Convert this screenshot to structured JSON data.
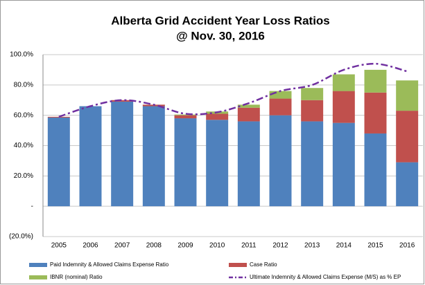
{
  "chart_data": {
    "type": "stacked-bar-line",
    "title": "Alberta Grid Accident Year Loss Ratios",
    "subtitle": "@ Nov. 30, 2016",
    "categories": [
      "2005",
      "2006",
      "2007",
      "2008",
      "2009",
      "2010",
      "2011",
      "2012",
      "2013",
      "2014",
      "2015",
      "2016"
    ],
    "series": [
      {
        "name": "Paid Indemnity & Allowed Claims Expense Ratio",
        "color": "#4f81bd",
        "kind": "bar",
        "values": [
          58.5,
          66,
          69,
          66,
          58,
          57,
          56,
          60,
          56,
          55,
          48,
          29
        ]
      },
      {
        "name": "Case Ratio",
        "color": "#c0504d",
        "kind": "bar",
        "values": [
          0.5,
          0,
          1,
          1,
          2,
          4,
          9,
          11,
          14,
          21,
          27,
          34
        ]
      },
      {
        "name": "IBNR (nominal) Ratio",
        "color": "#9bbb59",
        "kind": "bar",
        "values": [
          0,
          0,
          0,
          0,
          0.5,
          1.5,
          2,
          5,
          8,
          11,
          15,
          20
        ]
      },
      {
        "name": "Ultimate Indemnity & Allowed Claims Expense (M/S) as % EP",
        "color": "#7030a0",
        "kind": "line",
        "values": [
          59,
          66,
          70,
          67,
          61,
          62,
          68,
          76,
          80,
          90,
          94,
          89
        ]
      }
    ],
    "ylim": [
      -20,
      100
    ],
    "yticks": [
      {
        "value": -20,
        "label": "(20.0%)"
      },
      {
        "value": 0,
        "label": "-"
      },
      {
        "value": 20,
        "label": "20.0%"
      },
      {
        "value": 40,
        "label": "40.0%"
      },
      {
        "value": 60,
        "label": "60.0%"
      },
      {
        "value": 80,
        "label": "80.0%"
      },
      {
        "value": 100,
        "label": "100.0%"
      }
    ],
    "grid": true
  }
}
